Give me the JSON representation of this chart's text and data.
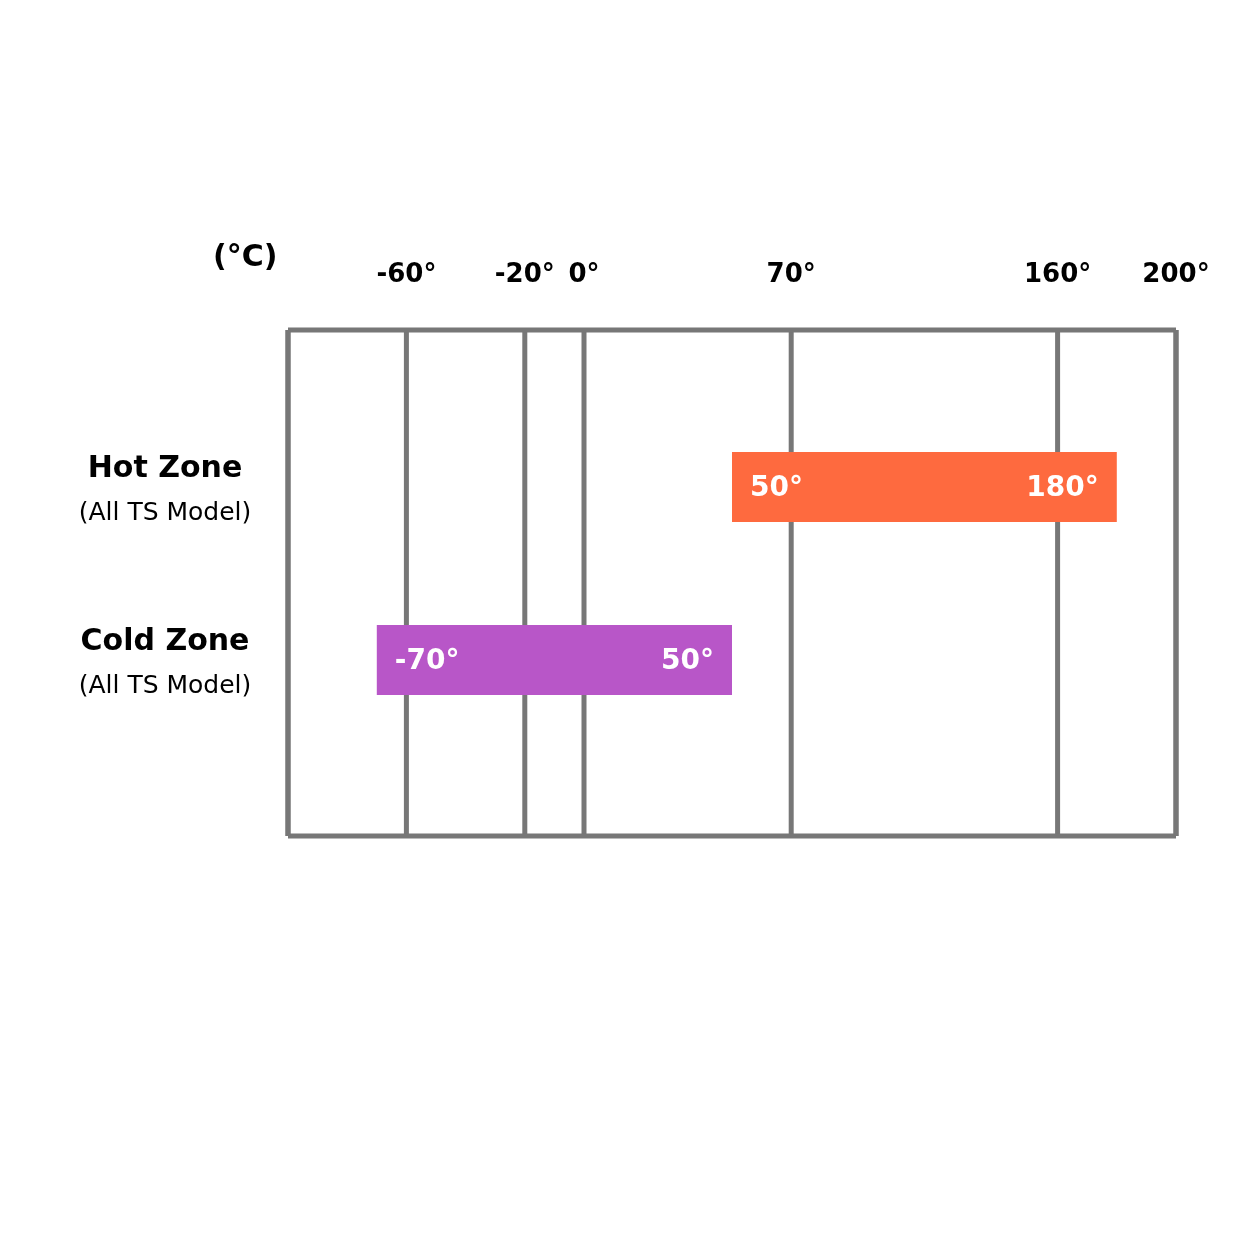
{
  "chart_data": {
    "type": "bar",
    "orientation": "horizontal",
    "xlabel": "(°C)",
    "categories": [
      "Hot Zone (All TS Model)",
      "Cold Zone (All TS Model)"
    ],
    "base": [
      50,
      -70
    ],
    "values": [
      130,
      120
    ],
    "colors": [
      "#fe6a3f",
      "#b856c8"
    ],
    "xlim": [
      -100,
      200
    ],
    "xticks": [
      {
        "value": -60,
        "label": "-60°"
      },
      {
        "value": -20,
        "label": "-20°"
      },
      {
        "value": 0,
        "label": "0°"
      },
      {
        "value": 70,
        "label": "70°"
      },
      {
        "value": 160,
        "label": "160°"
      },
      {
        "value": 200,
        "label": "200°"
      }
    ],
    "grid": "x",
    "annotations": [
      "50°",
      "180°",
      "-70°",
      "50°"
    ]
  }
}
